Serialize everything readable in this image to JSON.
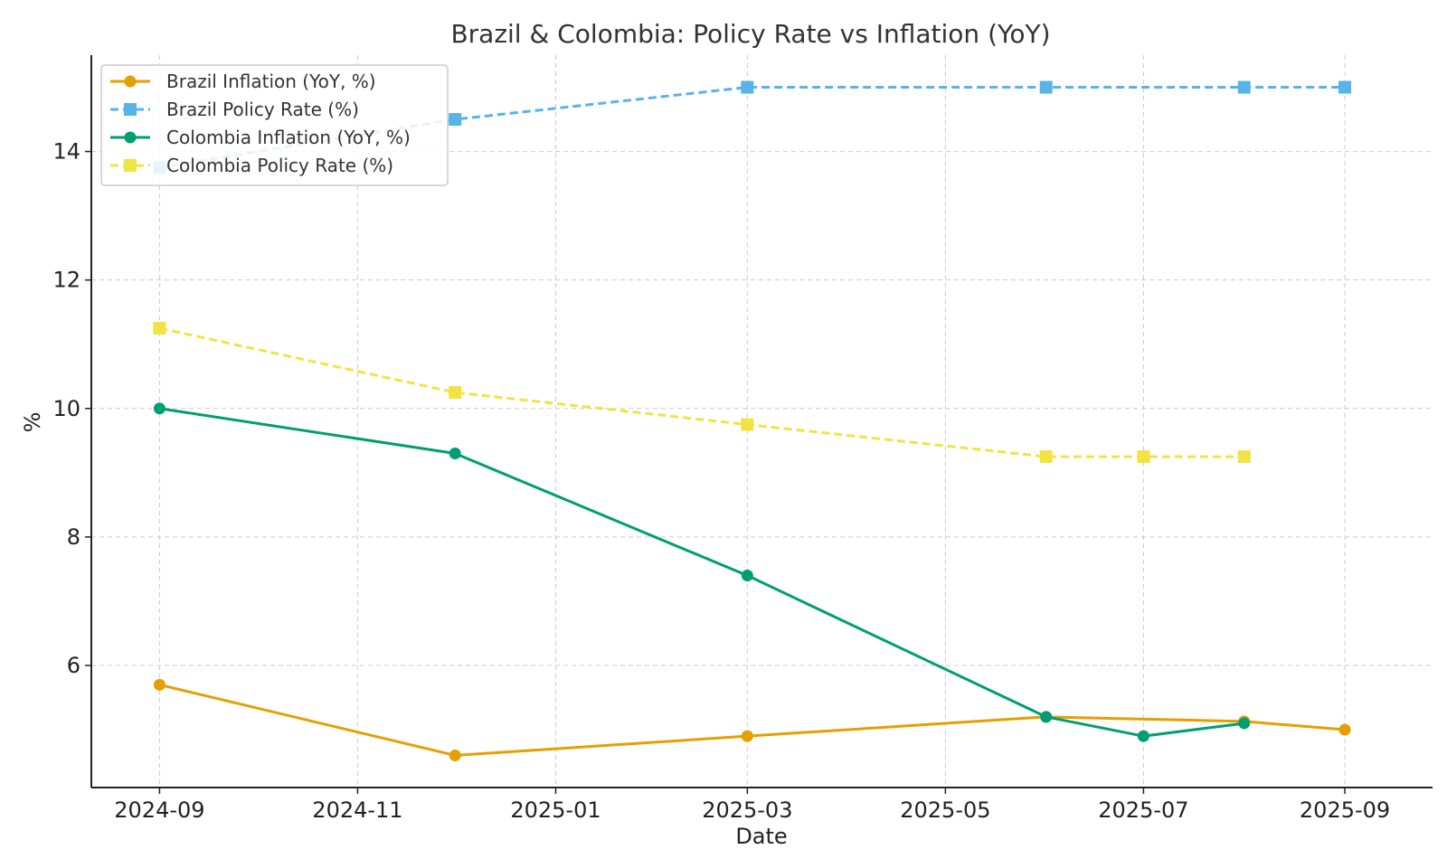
{
  "chart_data": {
    "type": "line",
    "title": "Brazil & Colombia: Policy Rate vs Inflation (YoY)",
    "xlabel": "Date",
    "ylabel": "%",
    "ylim": [
      4.1,
      15.5
    ],
    "yticks": [
      6,
      8,
      10,
      12,
      14
    ],
    "x_range": [
      "2024-08-11",
      "2025-09-28"
    ],
    "xticks": [
      {
        "date": "2024-09-01",
        "label": "2024-09"
      },
      {
        "date": "2024-11-01",
        "label": "2024-11"
      },
      {
        "date": "2025-01-01",
        "label": "2025-01"
      },
      {
        "date": "2025-03-01",
        "label": "2025-03"
      },
      {
        "date": "2025-05-01",
        "label": "2025-05"
      },
      {
        "date": "2025-07-01",
        "label": "2025-07"
      },
      {
        "date": "2025-09-01",
        "label": "2025-09"
      }
    ],
    "grid": true,
    "legend_position": "top-left",
    "series": [
      {
        "name": "Brazil Inflation (YoY, %)",
        "color": "#E69F00",
        "line_style": "solid",
        "marker": "circle",
        "points": [
          {
            "date": "2024-09-01",
            "value": 5.7
          },
          {
            "date": "2024-12-01",
            "value": 4.6
          },
          {
            "date": "2025-03-01",
            "value": 4.9
          },
          {
            "date": "2025-06-01",
            "value": 5.2
          },
          {
            "date": "2025-08-01",
            "value": 5.13
          },
          {
            "date": "2025-09-01",
            "value": 5.0
          }
        ]
      },
      {
        "name": "Brazil Policy Rate (%)",
        "color": "#56B4E9",
        "line_style": "dashed",
        "marker": "square",
        "points": [
          {
            "date": "2024-09-01",
            "value": 13.75
          },
          {
            "date": "2024-12-01",
            "value": 14.5
          },
          {
            "date": "2025-03-01",
            "value": 15.0
          },
          {
            "date": "2025-06-01",
            "value": 15.0
          },
          {
            "date": "2025-08-01",
            "value": 15.0
          },
          {
            "date": "2025-09-01",
            "value": 15.0
          }
        ]
      },
      {
        "name": "Colombia Inflation (YoY, %)",
        "color": "#009E73",
        "line_style": "solid",
        "marker": "circle",
        "points": [
          {
            "date": "2024-09-01",
            "value": 10.0
          },
          {
            "date": "2024-12-01",
            "value": 9.3
          },
          {
            "date": "2025-03-01",
            "value": 7.4
          },
          {
            "date": "2025-06-01",
            "value": 5.2
          },
          {
            "date": "2025-07-01",
            "value": 4.9
          },
          {
            "date": "2025-08-01",
            "value": 5.1
          }
        ]
      },
      {
        "name": "Colombia Policy Rate (%)",
        "color": "#F0E442",
        "line_style": "dashed",
        "marker": "square",
        "points": [
          {
            "date": "2024-09-01",
            "value": 11.25
          },
          {
            "date": "2024-12-01",
            "value": 10.25
          },
          {
            "date": "2025-03-01",
            "value": 9.75
          },
          {
            "date": "2025-06-01",
            "value": 9.25
          },
          {
            "date": "2025-07-01",
            "value": 9.25
          },
          {
            "date": "2025-08-01",
            "value": 9.25
          }
        ]
      }
    ]
  }
}
